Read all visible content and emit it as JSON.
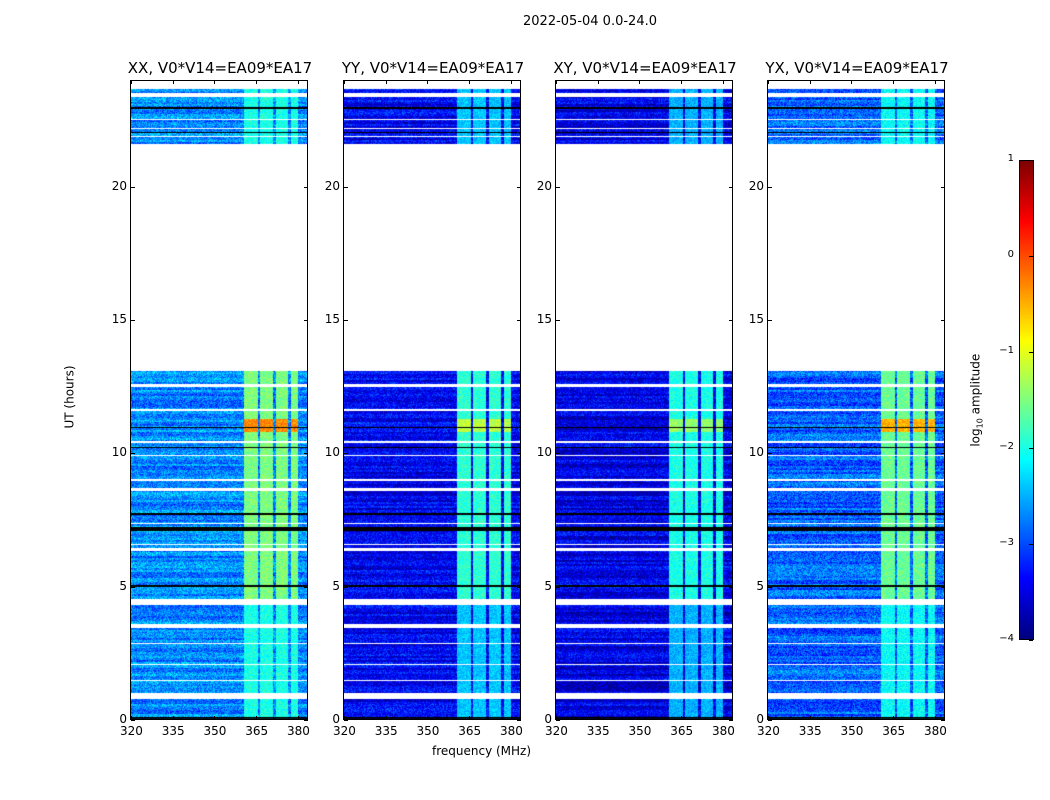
{
  "chart_data": {
    "type": "heatmap",
    "title": "2022-05-04 0.0-24.0",
    "xlabel": "frequency (MHz)",
    "ylabel": "UT (hours)",
    "xlim": [
      320,
      383.6
    ],
    "ylim": [
      0,
      24
    ],
    "xticks": [
      "320",
      "335",
      "350",
      "365",
      "380"
    ],
    "xtick_values": [
      320,
      335,
      350,
      365,
      380
    ],
    "yticks": [
      "0",
      "5",
      "10",
      "15",
      "20"
    ],
    "ytick_values": [
      0,
      5,
      10,
      15,
      20
    ],
    "colorbar": {
      "label": "log10 amplitude",
      "label_main": "log",
      "label_sub": "10",
      "label_rest": " amplitude",
      "range": [
        -4,
        1
      ],
      "ticks": [
        "1",
        "0",
        "−1",
        "−2",
        "−3",
        "−4"
      ],
      "tick_values": [
        1,
        0,
        -1,
        -2,
        -3,
        -4
      ],
      "colormap": "jet"
    },
    "panels": [
      {
        "title": "XX, V0*V14=EA09*EA17",
        "background_log_amp": -2.7,
        "band_log_amp": -1.5,
        "peak_log_amp": -0.3
      },
      {
        "title": "YY, V0*V14=EA09*EA17",
        "background_log_amp": -3.4,
        "band_log_amp": -1.9,
        "peak_log_amp": -1.2
      },
      {
        "title": "XY, V0*V14=EA09*EA17",
        "background_log_amp": -3.5,
        "band_log_amp": -2.0,
        "peak_log_amp": -1.4
      },
      {
        "title": "YX, V0*V14=EA09*EA17",
        "background_log_amp": -2.9,
        "band_log_amp": -1.6,
        "peak_log_amp": -0.5
      }
    ],
    "rfi_subbands_MHz": [
      [
        360.5,
        365.5
      ],
      [
        366.5,
        371
      ],
      [
        372,
        376.5
      ],
      [
        377.5,
        380
      ]
    ],
    "peak_time_range_h": [
      10.8,
      11.3
    ],
    "no_data_h": [
      [
        0.8,
        1.0
      ],
      [
        1.45,
        1.5
      ],
      [
        2.05,
        2.1
      ],
      [
        2.85,
        2.9
      ],
      [
        3.45,
        3.6
      ],
      [
        4.3,
        4.55
      ],
      [
        6.35,
        6.45
      ],
      [
        6.55,
        6.6
      ],
      [
        7.35,
        7.4
      ],
      [
        8.6,
        8.7
      ],
      [
        8.95,
        9.05
      ],
      [
        9.9,
        9.95
      ],
      [
        10.4,
        10.45
      ],
      [
        11.6,
        11.65
      ],
      [
        12.5,
        12.6
      ],
      [
        13.1,
        21.6
      ],
      [
        21.85,
        21.9
      ],
      [
        22.15,
        22.2
      ],
      [
        22.5,
        22.55
      ],
      [
        23.35,
        23.5
      ],
      [
        23.65,
        24
      ]
    ],
    "flagged_h": [
      [
        0.05,
        0.1
      ],
      [
        5.0,
        5.05
      ],
      [
        7.1,
        7.25
      ],
      [
        7.7,
        7.75
      ],
      [
        10.2,
        10.25
      ],
      [
        10.95,
        11.0
      ],
      [
        22.0,
        22.05
      ],
      [
        22.9,
        23.0
      ]
    ]
  }
}
